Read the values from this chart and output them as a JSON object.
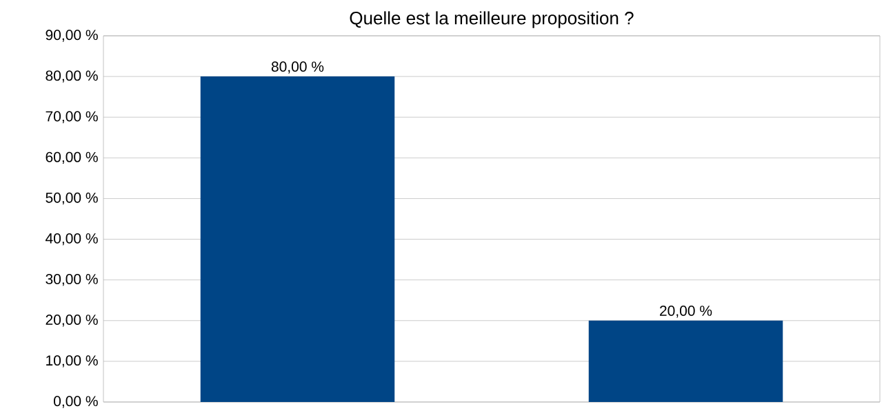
{
  "chart_data": {
    "type": "bar",
    "title": "Quelle est la meilleure proposition ?",
    "categories": [
      null,
      null
    ],
    "values": [
      80,
      20
    ],
    "value_labels": [
      "80,00 %",
      "20,00 %"
    ],
    "color": "#004586",
    "ylim": [
      0,
      90
    ],
    "yticks": [
      {
        "value": 0,
        "label": "0,00 %"
      },
      {
        "value": 10,
        "label": "10,00 %"
      },
      {
        "value": 20,
        "label": "20,00 %"
      },
      {
        "value": 30,
        "label": "30,00 %"
      },
      {
        "value": 40,
        "label": "40,00 %"
      },
      {
        "value": 50,
        "label": "50,00 %"
      },
      {
        "value": 60,
        "label": "60,00 %"
      },
      {
        "value": 70,
        "label": "70,00 %"
      },
      {
        "value": 80,
        "label": "80,00 %"
      },
      {
        "value": 90,
        "label": "90,00 %"
      }
    ],
    "grid": "y"
  }
}
